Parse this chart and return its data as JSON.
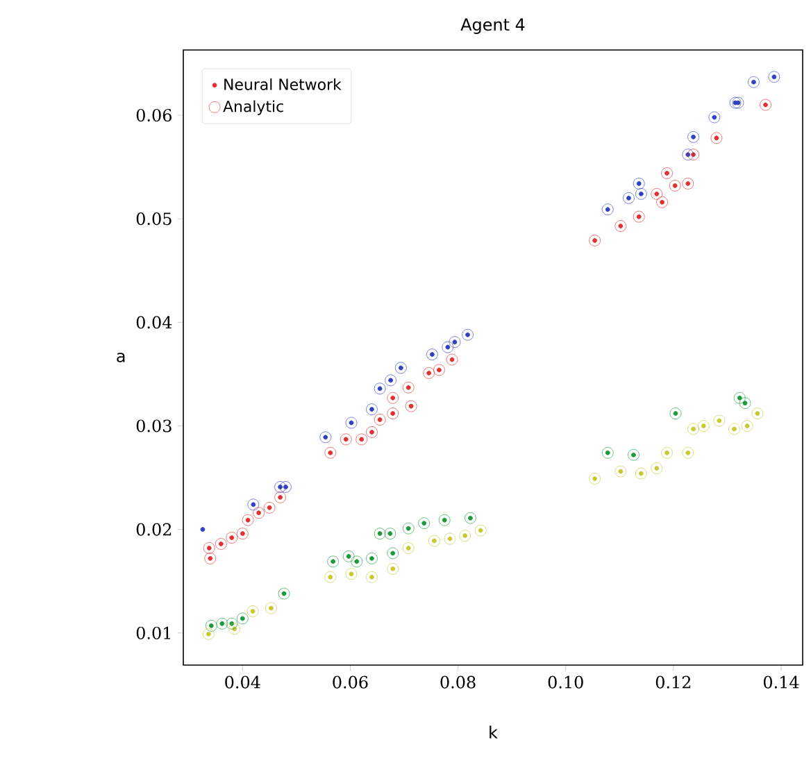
{
  "chart_data": {
    "type": "scatter",
    "title": "Agent 4",
    "xlabel": "k",
    "ylabel": "a",
    "xlim": [
      0.029,
      0.144
    ],
    "ylim": [
      0.0069,
      0.0663
    ],
    "xticks": [
      0.04,
      0.06,
      0.08,
      {
        "value": 0.1,
        "label": "0.10"
      },
      0.12,
      0.14
    ],
    "yticks": [
      0.01,
      0.02,
      0.03,
      0.04,
      0.05,
      0.06
    ],
    "grid": false,
    "legend": "top left",
    "marker": "circle",
    "series": [
      {
        "name": "Neural Network",
        "x": [
          0.034,
          0.0338,
          0.036,
          0.038,
          0.04,
          0.041,
          0.043,
          0.045,
          0.047,
          0.042,
          0.047,
          0.048,
          0.0326,
          0.0563,
          0.0592,
          0.0621,
          0.064,
          0.0655,
          0.0679,
          0.0713,
          0.0708,
          0.0746,
          0.0765,
          0.0789,
          0.0679,
          0.0554,
          0.0602,
          0.064,
          0.0655,
          0.0675,
          0.0694,
          0.0752,
          0.0781,
          0.0794,
          0.0818,
          0.1054,
          0.1102,
          0.1136,
          0.1169,
          0.1179,
          0.1188,
          0.1203,
          0.1227,
          0.1237,
          0.128,
          0.1371,
          0.1078,
          0.1117,
          0.1136,
          0.114,
          0.1227,
          0.1237,
          0.1276,
          0.1315,
          0.132,
          0.1349,
          0.1387,
          0.0342,
          0.0362,
          0.038,
          0.04,
          0.0477,
          0.0337,
          0.0385,
          0.0419,
          0.0453,
          0.0568,
          0.0597,
          0.0612,
          0.064,
          0.0655,
          0.0674,
          0.0679,
          0.0708,
          0.0737,
          0.0775,
          0.0823,
          0.0563,
          0.0602,
          0.064,
          0.0679,
          0.0708,
          0.0756,
          0.0785,
          0.0813,
          0.0842,
          0.1078,
          0.1126,
          0.1204,
          0.1323,
          0.1333,
          0.1054,
          0.1102,
          0.114,
          0.1169,
          0.1188,
          0.1227,
          0.1237,
          0.1256,
          0.1285,
          0.1313,
          0.1337,
          0.1356
        ],
        "values": [
          0.0172,
          0.0182,
          0.0186,
          0.0192,
          0.0196,
          0.0209,
          0.0216,
          0.0221,
          0.0231,
          0.0224,
          0.0241,
          0.0241,
          0.02,
          0.0274,
          0.0287,
          0.0287,
          0.0294,
          0.0306,
          0.0312,
          0.0319,
          0.0337,
          0.0351,
          0.0354,
          0.0364,
          0.0327,
          0.0289,
          0.0303,
          0.0316,
          0.0336,
          0.0344,
          0.0356,
          0.0369,
          0.0376,
          0.0381,
          0.0388,
          0.0479,
          0.0493,
          0.0502,
          0.0524,
          0.0516,
          0.0544,
          0.0532,
          0.0534,
          0.0562,
          0.0578,
          0.061,
          0.0509,
          0.052,
          0.0534,
          0.0524,
          0.0562,
          0.0579,
          0.0598,
          0.0612,
          0.0612,
          0.0632,
          0.0637,
          0.0107,
          0.0109,
          0.0109,
          0.0114,
          0.0138,
          0.0099,
          0.0104,
          0.0121,
          0.0124,
          0.0169,
          0.0174,
          0.0169,
          0.0172,
          0.0196,
          0.0196,
          0.0177,
          0.0201,
          0.0206,
          0.0209,
          0.0211,
          0.0154,
          0.0157,
          0.0154,
          0.0162,
          0.0182,
          0.0189,
          0.0191,
          0.0194,
          0.0199,
          0.0274,
          0.0272,
          0.0312,
          0.0327,
          0.0322,
          0.0249,
          0.0256,
          0.0254,
          0.0259,
          0.0274,
          0.0274,
          0.0297,
          0.03,
          0.0305,
          0.0297,
          0.03,
          0.0312
        ],
        "colors": [
          "#e03030",
          "#e03030",
          "#e03030",
          "#e03030",
          "#e03030",
          "#e03030",
          "#e03030",
          "#e03030",
          "#e03030",
          "#3040c0",
          "#3040c0",
          "#3040c0",
          "#3040c0",
          "#e03030",
          "#e03030",
          "#e03030",
          "#e03030",
          "#e03030",
          "#e03030",
          "#e03030",
          "#e03030",
          "#e03030",
          "#e03030",
          "#e03030",
          "#e03030",
          "#3040c0",
          "#3040c0",
          "#3040c0",
          "#3040c0",
          "#3040c0",
          "#3040c0",
          "#3040c0",
          "#3040c0",
          "#3040c0",
          "#3040c0",
          "#e03030",
          "#e03030",
          "#e03030",
          "#e03030",
          "#e03030",
          "#e03030",
          "#e03030",
          "#e03030",
          "#e03030",
          "#e03030",
          "#e03030",
          "#3040c0",
          "#3040c0",
          "#3040c0",
          "#3040c0",
          "#3040c0",
          "#3040c0",
          "#3040c0",
          "#3040c0",
          "#3040c0",
          "#3040c0",
          "#3040c0",
          "#1a9a3a",
          "#1a9a3a",
          "#1a9a3a",
          "#1a9a3a",
          "#1a9a3a",
          "#c8c830",
          "#c8c830",
          "#c8c830",
          "#c8c830",
          "#1a9a3a",
          "#1a9a3a",
          "#1a9a3a",
          "#1a9a3a",
          "#1a9a3a",
          "#1a9a3a",
          "#1a9a3a",
          "#1a9a3a",
          "#1a9a3a",
          "#1a9a3a",
          "#1a9a3a",
          "#c8c830",
          "#c8c830",
          "#c8c830",
          "#c8c830",
          "#c8c830",
          "#c8c830",
          "#c8c830",
          "#c8c830",
          "#c8c830",
          "#1a9a3a",
          "#1a9a3a",
          "#1a9a3a",
          "#1a9a3a",
          "#1a9a3a",
          "#c8c830",
          "#c8c830",
          "#c8c830",
          "#c8c830",
          "#c8c830",
          "#c8c830",
          "#c8c830",
          "#c8c830",
          "#c8c830",
          "#c8c830",
          "#c8c830",
          "#c8c830"
        ]
      },
      {
        "name": "Analytic",
        "x": [
          0.034,
          0.0338,
          0.036,
          0.038,
          0.04,
          0.041,
          0.043,
          0.045,
          0.047,
          0.042,
          0.047,
          0.048,
          0.0563,
          0.0592,
          0.0621,
          0.064,
          0.0655,
          0.0679,
          0.0713,
          0.0708,
          0.0746,
          0.0765,
          0.0789,
          0.0679,
          0.0554,
          0.0602,
          0.064,
          0.0655,
          0.0675,
          0.0694,
          0.0752,
          0.0781,
          0.0794,
          0.0818,
          0.1054,
          0.1102,
          0.1136,
          0.1169,
          0.1179,
          0.1188,
          0.1203,
          0.1227,
          0.1237,
          0.128,
          0.1371,
          0.1078,
          0.1117,
          0.1136,
          0.114,
          0.1227,
          0.1237,
          0.1276,
          0.1315,
          0.132,
          0.1349,
          0.1387,
          0.0342,
          0.0362,
          0.038,
          0.04,
          0.0477,
          0.0337,
          0.0385,
          0.0419,
          0.0453,
          0.0568,
          0.0597,
          0.0612,
          0.064,
          0.0655,
          0.0674,
          0.0679,
          0.0708,
          0.0737,
          0.0775,
          0.0823,
          0.0563,
          0.0602,
          0.064,
          0.0679,
          0.0708,
          0.0756,
          0.0785,
          0.0813,
          0.0842,
          0.1078,
          0.1126,
          0.1204,
          0.1323,
          0.1333,
          0.1054,
          0.1102,
          0.114,
          0.1169,
          0.1188,
          0.1227,
          0.1237,
          0.1256,
          0.1285,
          0.1313,
          0.1337,
          0.1356
        ],
        "values": [
          0.0172,
          0.0182,
          0.0186,
          0.0192,
          0.0196,
          0.0209,
          0.0216,
          0.0221,
          0.0231,
          0.0224,
          0.0241,
          0.0241,
          0.0274,
          0.0287,
          0.0287,
          0.0294,
          0.0306,
          0.0312,
          0.0319,
          0.0337,
          0.0351,
          0.0354,
          0.0364,
          0.0327,
          0.0289,
          0.0303,
          0.0316,
          0.0336,
          0.0344,
          0.0356,
          0.0369,
          0.0376,
          0.0381,
          0.0388,
          0.0479,
          0.0493,
          0.0502,
          0.0524,
          0.0516,
          0.0544,
          0.0532,
          0.0534,
          0.0562,
          0.0578,
          0.061,
          0.0509,
          0.052,
          0.0534,
          0.0524,
          0.0562,
          0.0579,
          0.0598,
          0.0612,
          0.0612,
          0.0632,
          0.0637,
          0.0107,
          0.0109,
          0.0109,
          0.0114,
          0.0138,
          0.0099,
          0.0104,
          0.0121,
          0.0124,
          0.0169,
          0.0174,
          0.0169,
          0.0172,
          0.0196,
          0.0196,
          0.0177,
          0.0201,
          0.0206,
          0.0209,
          0.0211,
          0.0154,
          0.0157,
          0.0154,
          0.0162,
          0.0182,
          0.0189,
          0.0191,
          0.0194,
          0.0199,
          0.0274,
          0.0272,
          0.0312,
          0.0327,
          0.0322,
          0.0249,
          0.0256,
          0.0254,
          0.0259,
          0.0274,
          0.0274,
          0.0297,
          0.03,
          0.0305,
          0.0297,
          0.03,
          0.0312
        ],
        "colors": [
          "#e03030",
          "#e03030",
          "#e03030",
          "#e03030",
          "#e03030",
          "#e03030",
          "#e03030",
          "#e03030",
          "#e03030",
          "#3040c0",
          "#3040c0",
          "#3040c0",
          "#e03030",
          "#e03030",
          "#e03030",
          "#e03030",
          "#e03030",
          "#e03030",
          "#e03030",
          "#e03030",
          "#e03030",
          "#e03030",
          "#e03030",
          "#e03030",
          "#3040c0",
          "#3040c0",
          "#3040c0",
          "#3040c0",
          "#3040c0",
          "#3040c0",
          "#3040c0",
          "#3040c0",
          "#3040c0",
          "#3040c0",
          "#e03030",
          "#e03030",
          "#e03030",
          "#e03030",
          "#e03030",
          "#e03030",
          "#e03030",
          "#e03030",
          "#e03030",
          "#e03030",
          "#e03030",
          "#3040c0",
          "#3040c0",
          "#3040c0",
          "#3040c0",
          "#3040c0",
          "#3040c0",
          "#3040c0",
          "#3040c0",
          "#3040c0",
          "#3040c0",
          "#3040c0",
          "#1a9a3a",
          "#1a9a3a",
          "#1a9a3a",
          "#1a9a3a",
          "#1a9a3a",
          "#c8c830",
          "#c8c830",
          "#c8c830",
          "#c8c830",
          "#1a9a3a",
          "#1a9a3a",
          "#1a9a3a",
          "#1a9a3a",
          "#1a9a3a",
          "#1a9a3a",
          "#1a9a3a",
          "#1a9a3a",
          "#1a9a3a",
          "#1a9a3a",
          "#1a9a3a",
          "#c8c830",
          "#c8c830",
          "#c8c830",
          "#c8c830",
          "#c8c830",
          "#c8c830",
          "#c8c830",
          "#c8c830",
          "#c8c830",
          "#1a9a3a",
          "#1a9a3a",
          "#1a9a3a",
          "#1a9a3a",
          "#1a9a3a",
          "#c8c830",
          "#c8c830",
          "#c8c830",
          "#c8c830",
          "#c8c830",
          "#c8c830",
          "#c8c830",
          "#c8c830",
          "#c8c830",
          "#c8c830",
          "#c8c830",
          "#c8c830"
        ]
      }
    ]
  }
}
